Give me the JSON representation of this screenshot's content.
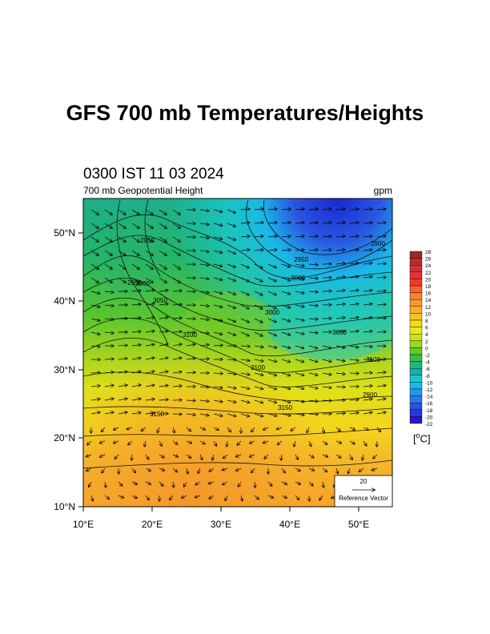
{
  "title": "GFS 700 mb Temperatures/Heights",
  "valid_time": "0300 IST 11 03 2024",
  "field_label": "700 mb Geopotential Height",
  "field_units": "gpm",
  "colorbar": {
    "levels": [
      "28",
      "26",
      "24",
      "22",
      "20",
      "18",
      "16",
      "14",
      "12",
      "10",
      "8",
      "6",
      "4",
      "2",
      "0",
      "-2",
      "-4",
      "-6",
      "-8",
      "-10",
      "-12",
      "-14",
      "-16",
      "-18",
      "-20",
      "-22"
    ],
    "colors": [
      "#9b2a2a",
      "#b82e2e",
      "#d43030",
      "#e83030",
      "#f23a2a",
      "#f4622a",
      "#f5803a",
      "#f59a30",
      "#f5b02a",
      "#f6c51f",
      "#f3d91c",
      "#eaea18",
      "#c9e21d",
      "#9bd920",
      "#66cc22",
      "#33c04a",
      "#1fb879",
      "#18b0a8",
      "#18c8d0",
      "#1ab8e8",
      "#2098ee",
      "#2a78ec",
      "#2a55e0",
      "#2a35d2",
      "#2418c4"
    ],
    "unit_label": "[",
    "unit_deg": "o",
    "unit_tail": "C]"
  },
  "axes": {
    "lat_labels": [
      "50°N",
      "40°N",
      "30°N",
      "20°N",
      "10°N"
    ],
    "lon_labels": [
      "10°E",
      "20°E",
      "30°E",
      "40°E",
      "50°E"
    ]
  },
  "contour_labels": [
    "2950",
    "2950",
    "2900",
    "3000",
    "3050",
    "3000",
    "3100",
    "3050",
    "3100",
    "3100",
    "3150",
    "3150",
    "2900",
    "2950",
    "3000"
  ],
  "reference_vector": {
    "magnitude": "20",
    "label": "Reference Vector"
  }
}
